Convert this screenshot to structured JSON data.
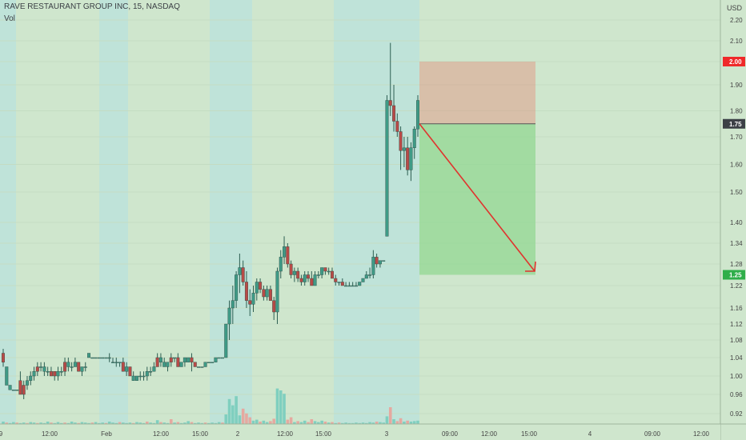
{
  "header": {
    "title": "RAVE RESTAURANT GROUP INC, 15, NASDAQ",
    "volume_label": "Vol"
  },
  "colors": {
    "background": "#cfe6cd",
    "session_band": "#bfe3d9",
    "up_candle": "#3f9a86",
    "down_candle": "#b94a47",
    "up_volume": "#7fcfbf",
    "down_volume": "#e5a9a0",
    "stop_zone": "#e2907f",
    "target_zone": "#8fd68f",
    "arrow": "#e0332e",
    "stop_badge": "#ef2a2a",
    "entry_badge": "#3c4046",
    "target_badge": "#2fae4a"
  },
  "chart_data": {
    "type": "candlestick",
    "y_axis": {
      "unit": "USD",
      "ticks": [
        "2.20",
        "2.10",
        "2.00",
        "1.90",
        "1.80",
        "1.70",
        "1.60",
        "1.50",
        "1.40",
        "1.34",
        "1.28",
        "1.22",
        "1.16",
        "1.12",
        "1.08",
        "1.04",
        "1.00",
        "0.96",
        "0.92"
      ],
      "tick_values": [
        2.2,
        2.1,
        2.0,
        1.9,
        1.8,
        1.7,
        1.6,
        1.5,
        1.4,
        1.34,
        1.28,
        1.22,
        1.16,
        1.12,
        1.08,
        1.04,
        1.0,
        0.96,
        0.92
      ],
      "price_labels": [
        {
          "text": "2.00",
          "value": 2.0,
          "role": "stop"
        },
        {
          "text": "1.75",
          "value": 1.75,
          "role": "entry"
        },
        {
          "text": "1.25",
          "value": 1.25,
          "role": "target"
        }
      ]
    },
    "x_axis": {
      "labels": [
        "9",
        "12:00",
        "Feb",
        "12:00",
        "15:00",
        "2",
        "12:00",
        "15:00",
        "3",
        "09:00",
        "12:00",
        "15:00",
        "4",
        "09:00",
        "12:00"
      ]
    },
    "position": {
      "type": "short",
      "entry": 1.75,
      "stop": 2.0,
      "target": 1.25
    },
    "candles": [
      [
        1.05,
        1.06,
        1.02,
        1.03,
        1
      ],
      [
        1.02,
        1.02,
        0.98,
        0.98,
        0
      ],
      [
        0.98,
        0.98,
        0.97,
        0.97,
        0
      ],
      [
        0.97,
        0.97,
        0.97,
        0.97,
        0
      ],
      [
        0.97,
        0.97,
        0.97,
        0.97,
        0
      ],
      [
        0.99,
        1.01,
        0.96,
        0.96,
        1
      ],
      [
        0.96,
        0.99,
        0.95,
        0.98,
        1
      ],
      [
        0.98,
        1.0,
        0.97,
        0.99,
        0
      ],
      [
        0.99,
        1.01,
        0.98,
        1.0,
        0
      ],
      [
        1.0,
        1.02,
        0.99,
        1.01,
        0
      ],
      [
        1.01,
        1.03,
        1.0,
        1.02,
        1
      ],
      [
        1.02,
        1.03,
        1.01,
        1.02,
        0
      ],
      [
        1.02,
        1.03,
        1.0,
        1.01,
        0
      ],
      [
        1.01,
        1.02,
        1.0,
        1.01,
        0
      ],
      [
        1.01,
        1.02,
        1.0,
        1.0,
        1
      ],
      [
        1.01,
        1.01,
        0.99,
        1.0,
        1
      ],
      [
        1.0,
        1.02,
        0.99,
        1.01,
        0
      ],
      [
        1.01,
        1.02,
        1.0,
        1.01,
        0
      ],
      [
        1.01,
        1.04,
        1.0,
        1.03,
        1
      ],
      [
        1.03,
        1.04,
        1.01,
        1.02,
        0
      ],
      [
        1.02,
        1.03,
        1.01,
        1.02,
        0
      ],
      [
        1.02,
        1.04,
        1.02,
        1.03,
        0
      ],
      [
        1.03,
        1.03,
        1.01,
        1.01,
        1
      ],
      [
        1.01,
        1.02,
        1.0,
        1.02,
        0
      ],
      [
        1.02,
        1.03,
        1.01,
        1.02,
        0
      ],
      [
        1.05,
        1.05,
        1.04,
        1.04,
        0
      ],
      [
        1.04,
        1.04,
        1.04,
        1.04,
        0
      ],
      [
        1.04,
        1.04,
        1.04,
        1.04,
        0
      ],
      [
        1.04,
        1.04,
        1.04,
        1.04,
        0
      ],
      [
        1.04,
        1.04,
        1.04,
        1.04,
        0
      ],
      [
        1.04,
        1.04,
        1.04,
        1.04,
        0
      ],
      [
        1.04,
        1.05,
        1.03,
        1.04,
        0
      ],
      [
        1.03,
        1.04,
        1.03,
        1.03,
        0
      ],
      [
        1.03,
        1.04,
        1.02,
        1.03,
        0
      ],
      [
        1.03,
        1.03,
        1.02,
        1.03,
        0
      ],
      [
        1.03,
        1.04,
        1.01,
        1.01,
        1
      ],
      [
        1.01,
        1.03,
        1.0,
        1.02,
        0
      ],
      [
        1.02,
        1.02,
        1.0,
        1.0,
        1
      ],
      [
        1.0,
        1.01,
        0.99,
        0.99,
        0
      ],
      [
        0.99,
        1.0,
        0.99,
        1.0,
        0
      ],
      [
        1.0,
        1.01,
        0.99,
        1.0,
        0
      ],
      [
        1.0,
        1.01,
        0.99,
        1.0,
        0
      ],
      [
        1.0,
        1.02,
        0.99,
        1.01,
        0
      ],
      [
        1.01,
        1.02,
        1.0,
        1.01,
        0
      ],
      [
        1.01,
        1.03,
        1.01,
        1.02,
        0
      ],
      [
        1.02,
        1.05,
        1.02,
        1.04,
        1
      ],
      [
        1.04,
        1.05,
        1.02,
        1.03,
        0
      ],
      [
        1.03,
        1.04,
        1.02,
        1.02,
        0
      ],
      [
        1.02,
        1.03,
        1.01,
        1.03,
        0
      ],
      [
        1.03,
        1.05,
        1.02,
        1.04,
        1
      ],
      [
        1.04,
        1.04,
        1.03,
        1.04,
        0
      ],
      [
        1.04,
        1.05,
        1.02,
        1.02,
        1
      ],
      [
        1.02,
        1.03,
        1.02,
        1.03,
        0
      ],
      [
        1.03,
        1.04,
        1.02,
        1.04,
        0
      ],
      [
        1.04,
        1.04,
        1.03,
        1.03,
        0
      ],
      [
        1.04,
        1.05,
        1.01,
        1.03,
        1
      ],
      [
        1.03,
        1.03,
        1.02,
        1.02,
        1
      ],
      [
        1.02,
        1.02,
        1.02,
        1.02,
        0
      ],
      [
        1.02,
        1.02,
        1.02,
        1.02,
        0
      ],
      [
        1.02,
        1.03,
        1.02,
        1.03,
        0
      ],
      [
        1.03,
        1.03,
        1.03,
        1.03,
        0
      ],
      [
        1.03,
        1.03,
        1.03,
        1.03,
        0
      ],
      [
        1.03,
        1.04,
        1.03,
        1.04,
        0
      ],
      [
        1.04,
        1.04,
        1.04,
        1.04,
        0
      ],
      [
        1.04,
        1.04,
        1.04,
        1.04,
        0
      ],
      [
        1.04,
        1.12,
        1.04,
        1.12,
        0
      ],
      [
        1.12,
        1.18,
        1.08,
        1.16,
        0
      ],
      [
        1.16,
        1.22,
        1.12,
        1.18,
        0
      ],
      [
        1.18,
        1.26,
        1.16,
        1.25,
        0
      ],
      [
        1.25,
        1.31,
        1.2,
        1.27,
        0
      ],
      [
        1.27,
        1.29,
        1.22,
        1.23,
        1
      ],
      [
        1.23,
        1.26,
        1.16,
        1.18,
        1
      ],
      [
        1.18,
        1.21,
        1.14,
        1.17,
        1
      ],
      [
        1.17,
        1.22,
        1.15,
        1.2,
        0
      ],
      [
        1.2,
        1.24,
        1.18,
        1.23,
        0
      ],
      [
        1.23,
        1.24,
        1.2,
        1.21,
        1
      ],
      [
        1.21,
        1.22,
        1.18,
        1.19,
        1
      ],
      [
        1.19,
        1.22,
        1.18,
        1.21,
        0
      ],
      [
        1.21,
        1.22,
        1.18,
        1.18,
        1
      ],
      [
        1.18,
        1.19,
        1.13,
        1.15,
        1
      ],
      [
        1.15,
        1.27,
        1.12,
        1.26,
        0
      ],
      [
        1.26,
        1.32,
        1.24,
        1.3,
        0
      ],
      [
        1.3,
        1.36,
        1.28,
        1.33,
        0
      ],
      [
        1.33,
        1.34,
        1.27,
        1.28,
        1
      ],
      [
        1.28,
        1.29,
        1.24,
        1.25,
        1
      ],
      [
        1.25,
        1.27,
        1.23,
        1.26,
        0
      ],
      [
        1.26,
        1.27,
        1.23,
        1.24,
        1
      ],
      [
        1.24,
        1.25,
        1.22,
        1.23,
        1
      ],
      [
        1.23,
        1.26,
        1.22,
        1.25,
        0
      ],
      [
        1.25,
        1.26,
        1.23,
        1.24,
        1
      ],
      [
        1.24,
        1.26,
        1.22,
        1.22,
        1
      ],
      [
        1.22,
        1.26,
        1.22,
        1.25,
        0
      ],
      [
        1.25,
        1.26,
        1.24,
        1.25,
        0
      ],
      [
        1.25,
        1.27,
        1.24,
        1.27,
        0
      ],
      [
        1.27,
        1.27,
        1.25,
        1.26,
        1
      ],
      [
        1.26,
        1.27,
        1.25,
        1.26,
        0
      ],
      [
        1.26,
        1.27,
        1.24,
        1.24,
        1
      ],
      [
        1.24,
        1.25,
        1.22,
        1.23,
        1
      ],
      [
        1.23,
        1.23,
        1.22,
        1.23,
        0
      ],
      [
        1.23,
        1.24,
        1.22,
        1.22,
        1
      ],
      [
        1.22,
        1.23,
        1.22,
        1.22,
        0
      ],
      [
        1.22,
        1.23,
        1.22,
        1.22,
        0
      ],
      [
        1.22,
        1.23,
        1.22,
        1.22,
        0
      ],
      [
        1.22,
        1.23,
        1.22,
        1.22,
        0
      ],
      [
        1.22,
        1.23,
        1.22,
        1.23,
        0
      ],
      [
        1.23,
        1.24,
        1.23,
        1.24,
        0
      ],
      [
        1.24,
        1.26,
        1.24,
        1.25,
        0
      ],
      [
        1.25,
        1.27,
        1.24,
        1.25,
        0
      ],
      [
        1.25,
        1.32,
        1.24,
        1.3,
        0
      ],
      [
        1.3,
        1.31,
        1.27,
        1.28,
        1
      ],
      [
        1.28,
        1.29,
        1.27,
        1.29,
        0
      ],
      [
        1.29,
        1.29,
        1.29,
        1.29,
        0
      ],
      [
        1.36,
        1.86,
        1.36,
        1.84,
        0
      ],
      [
        1.84,
        2.09,
        1.78,
        1.82,
        1
      ],
      [
        1.82,
        1.9,
        1.72,
        1.76,
        1
      ],
      [
        1.76,
        1.79,
        1.7,
        1.72,
        1
      ],
      [
        1.72,
        1.74,
        1.58,
        1.65,
        1
      ],
      [
        1.65,
        1.7,
        1.59,
        1.66,
        0
      ],
      [
        1.66,
        1.7,
        1.56,
        1.58,
        1
      ],
      [
        1.58,
        1.68,
        1.54,
        1.66,
        0
      ],
      [
        1.66,
        1.74,
        1.62,
        1.73,
        0
      ],
      [
        1.73,
        1.86,
        1.7,
        1.84,
        0
      ]
    ],
    "volume": [
      [
        5,
        0
      ],
      [
        3,
        1
      ],
      [
        2,
        0
      ],
      [
        4,
        0
      ],
      [
        3,
        1
      ],
      [
        2,
        0
      ],
      [
        3,
        0
      ],
      [
        2,
        1
      ],
      [
        4,
        0
      ],
      [
        3,
        0
      ],
      [
        2,
        1
      ],
      [
        3,
        0
      ],
      [
        2,
        0
      ],
      [
        5,
        0
      ],
      [
        3,
        1
      ],
      [
        2,
        0
      ],
      [
        4,
        0
      ],
      [
        2,
        0
      ],
      [
        3,
        1
      ],
      [
        2,
        0
      ],
      [
        5,
        0
      ],
      [
        3,
        0
      ],
      [
        2,
        1
      ],
      [
        4,
        0
      ],
      [
        3,
        0
      ],
      [
        2,
        0
      ],
      [
        3,
        1
      ],
      [
        4,
        0
      ],
      [
        2,
        0
      ],
      [
        3,
        0
      ],
      [
        2,
        1
      ],
      [
        5,
        0
      ],
      [
        3,
        0
      ],
      [
        2,
        0
      ],
      [
        4,
        1
      ],
      [
        3,
        0
      ],
      [
        2,
        0
      ],
      [
        3,
        0
      ],
      [
        2,
        1
      ],
      [
        4,
        0
      ],
      [
        3,
        0
      ],
      [
        2,
        0
      ],
      [
        5,
        1
      ],
      [
        3,
        0
      ],
      [
        2,
        0
      ],
      [
        8,
        0
      ],
      [
        4,
        1
      ],
      [
        3,
        0
      ],
      [
        2,
        0
      ],
      [
        10,
        1
      ],
      [
        3,
        0
      ],
      [
        4,
        1
      ],
      [
        2,
        0
      ],
      [
        3,
        0
      ],
      [
        6,
        0
      ],
      [
        4,
        1
      ],
      [
        2,
        0
      ],
      [
        3,
        0
      ],
      [
        2,
        0
      ],
      [
        3,
        1
      ],
      [
        2,
        0
      ],
      [
        3,
        0
      ],
      [
        2,
        0
      ],
      [
        4,
        0
      ],
      [
        3,
        1
      ],
      [
        20,
        0
      ],
      [
        52,
        0
      ],
      [
        39,
        0
      ],
      [
        58,
        0
      ],
      [
        18,
        0
      ],
      [
        32,
        1
      ],
      [
        22,
        1
      ],
      [
        14,
        1
      ],
      [
        7,
        0
      ],
      [
        9,
        0
      ],
      [
        5,
        1
      ],
      [
        7,
        0
      ],
      [
        4,
        0
      ],
      [
        6,
        1
      ],
      [
        11,
        1
      ],
      [
        74,
        0
      ],
      [
        70,
        0
      ],
      [
        63,
        0
      ],
      [
        9,
        1
      ],
      [
        14,
        1
      ],
      [
        4,
        0
      ],
      [
        6,
        1
      ],
      [
        4,
        0
      ],
      [
        7,
        0
      ],
      [
        4,
        1
      ],
      [
        10,
        1
      ],
      [
        6,
        0
      ],
      [
        4,
        0
      ],
      [
        7,
        0
      ],
      [
        5,
        1
      ],
      [
        3,
        0
      ],
      [
        4,
        1
      ],
      [
        2,
        0
      ],
      [
        3,
        1
      ],
      [
        2,
        0
      ],
      [
        3,
        0
      ],
      [
        2,
        0
      ],
      [
        2,
        0
      ],
      [
        3,
        0
      ],
      [
        2,
        0
      ],
      [
        3,
        0
      ],
      [
        2,
        0
      ],
      [
        4,
        0
      ],
      [
        3,
        0
      ],
      [
        5,
        1
      ],
      [
        4,
        0
      ],
      [
        3,
        0
      ],
      [
        16,
        0
      ],
      [
        35,
        1
      ],
      [
        10,
        0
      ],
      [
        6,
        1
      ],
      [
        12,
        1
      ],
      [
        5,
        0
      ],
      [
        7,
        1
      ],
      [
        5,
        0
      ],
      [
        6,
        0
      ],
      [
        7,
        0
      ]
    ]
  }
}
